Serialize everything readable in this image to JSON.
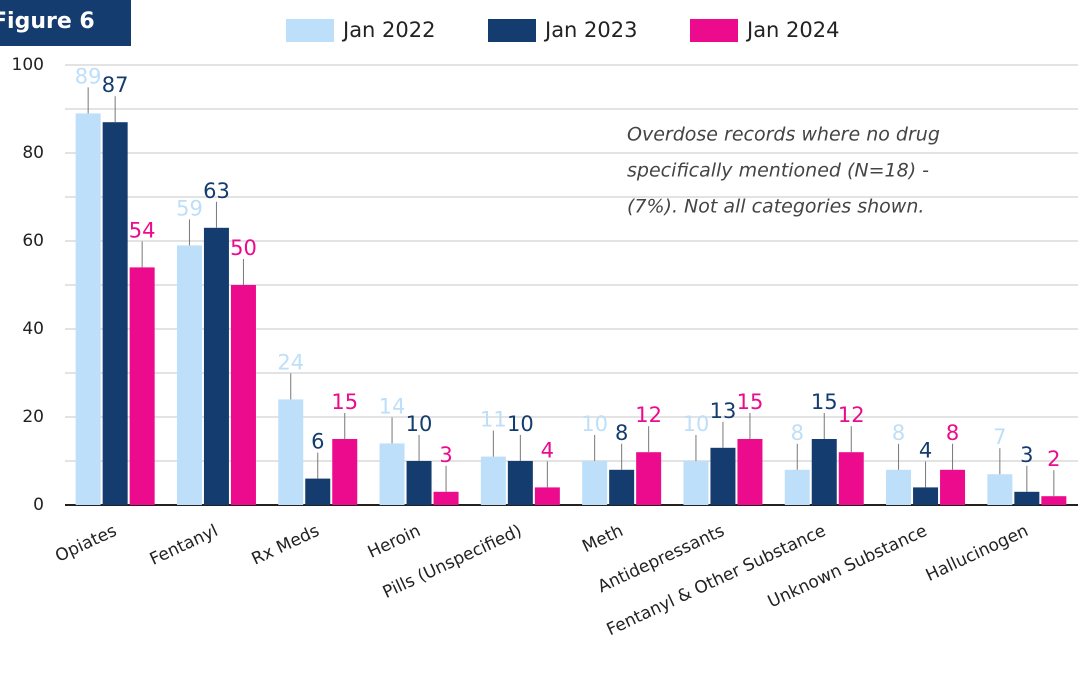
{
  "chart_data": {
    "type": "bar",
    "figure_label": "Figure 6",
    "annotation": [
      "Overdose records where no drug",
      "specifically mentioned (N=18) -",
      "(7%). Not all categories shown."
    ],
    "categories": [
      "Opiates",
      "Fentanyl",
      "Rx Meds",
      "Heroin",
      "Pills (Unspecified)",
      "Meth",
      "Antidepressants",
      "Fentanyl & Other Substance",
      "Unknown Substance",
      "Hallucinogen"
    ],
    "series": [
      {
        "name": "Jan 2022",
        "color": "#bddff9",
        "values": [
          89,
          59,
          24,
          14,
          11,
          10,
          10,
          8,
          8,
          7
        ]
      },
      {
        "name": "Jan 2023",
        "color": "#153c6e",
        "values": [
          87,
          63,
          6,
          10,
          10,
          8,
          13,
          15,
          4,
          3
        ]
      },
      {
        "name": "Jan 2024",
        "color": "#ec0b8d",
        "values": [
          54,
          50,
          15,
          3,
          4,
          12,
          15,
          12,
          8,
          2
        ]
      }
    ],
    "ylim": [
      0,
      100
    ],
    "yticks": [
      0,
      20,
      40,
      60,
      80,
      100
    ],
    "minor_yticks": [
      10,
      30,
      50,
      70,
      90
    ],
    "grid": true
  }
}
